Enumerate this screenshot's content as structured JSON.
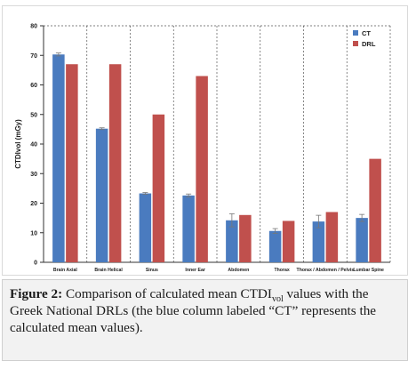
{
  "chart_data": {
    "type": "bar",
    "categories": [
      "Brain Axial",
      "Brain Helical",
      "Sinus",
      "Inner Ear",
      "Abdomen",
      "Thorax",
      "Thorax / Abdomen / Pelvis",
      "Lumbar Spine"
    ],
    "series": [
      {
        "name": "CT",
        "values": [
          70.3,
          45.2,
          23.3,
          22.6,
          14.2,
          10.6,
          13.8,
          15.0
        ],
        "errors": [
          0.5,
          0.3,
          0.3,
          0.5,
          2.2,
          0.8,
          2.1,
          1.2
        ],
        "color": "#4a7bbf"
      },
      {
        "name": "DRL",
        "values": [
          67,
          67,
          50,
          63,
          16,
          14,
          17,
          35
        ],
        "color": "#c0504d"
      }
    ],
    "title": "",
    "xlabel": "",
    "ylabel": "CTDIvol (mGy)",
    "ylim": [
      0,
      80
    ],
    "yticks": [
      0,
      10,
      20,
      30,
      40,
      50,
      60,
      70,
      80
    ],
    "grid": "dashed vertical separators between categories",
    "legend": "top-right"
  },
  "caption": {
    "label": "Figure 2:",
    "text_part1": "Comparison of calculated mean CTDI",
    "text_sub": "vol",
    "text_part2": "values with the Greek National DRLs (the blue column labeled “CT” represents the calculated mean values)."
  }
}
